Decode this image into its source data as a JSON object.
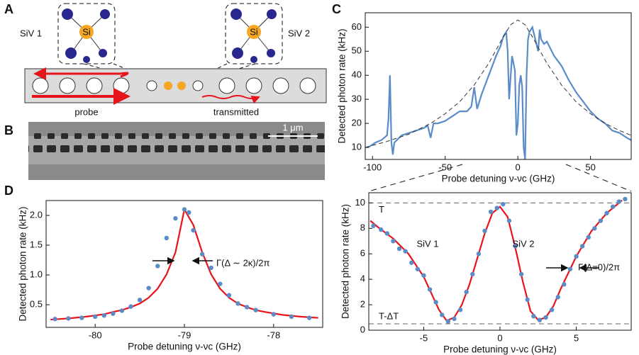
{
  "panel_labels": [
    "A",
    "B",
    "C",
    "D"
  ],
  "diagram": {
    "siv1": "SiV 1",
    "siv2": "SiV 2",
    "atom": "Si",
    "probe": "probe",
    "transmitted": "transmitted",
    "scale_bar": "1 μm"
  },
  "chart_data": [
    {
      "type": "line",
      "xlabel": "Probe detuning ν-νc (GHz)",
      "ylabel": "Detected photon rate (kHz)",
      "xlim": [
        -105,
        78
      ],
      "ylim": [
        5,
        66
      ],
      "xticks": [
        -100,
        -50,
        0,
        50
      ],
      "yticks": [
        10,
        20,
        30,
        40,
        50,
        60
      ],
      "series": [
        {
          "color": "#5b8cc8",
          "kind": "line",
          "dash": false,
          "x": [
            -103,
            -98,
            -94,
            -90,
            -89,
            -88,
            -87,
            -86,
            -85,
            -80,
            -75,
            -70,
            -65,
            -62,
            -60,
            -58,
            -55,
            -50,
            -45,
            -40,
            -35,
            -32,
            -30,
            -28,
            -25,
            -20,
            -15,
            -12,
            -10,
            -8,
            -7,
            -6,
            -4,
            -2,
            -1,
            0,
            1,
            2,
            3,
            4,
            5,
            6,
            7,
            8,
            10,
            12,
            14,
            15,
            16,
            18,
            20,
            25,
            30,
            35,
            40,
            45,
            50,
            55,
            60,
            65,
            70,
            75,
            78
          ],
          "values": [
            10,
            12,
            13,
            15,
            22,
            40,
            12,
            7,
            12,
            15,
            16,
            17,
            18,
            19,
            14,
            20,
            20,
            21,
            23,
            25,
            25,
            27,
            35,
            26,
            32,
            40,
            48,
            52,
            56,
            58,
            50,
            30,
            48,
            42,
            15,
            20,
            36,
            40,
            35,
            10,
            5,
            40,
            55,
            58,
            60,
            55,
            50,
            59,
            55,
            53,
            54,
            48,
            44,
            38,
            33,
            29,
            25,
            22,
            20,
            17,
            16,
            14,
            13
          ]
        },
        {
          "color": "#333333",
          "kind": "line",
          "dash": true,
          "x": [
            -105,
            -90,
            -75,
            -60,
            -50,
            -40,
            -30,
            -20,
            -10,
            -5,
            0,
            5,
            10,
            20,
            30,
            40,
            50,
            60,
            70,
            78
          ],
          "values": [
            10,
            12.5,
            15.5,
            20,
            24,
            29,
            36,
            45,
            56,
            61,
            63,
            61,
            56,
            45,
            36,
            29,
            24,
            20,
            17,
            15
          ]
        }
      ]
    },
    {
      "type": "scatter",
      "xlabel": "Probe detuning ν-νc (GHz)",
      "ylabel": "Detected photon rate (kHz)",
      "xlim": [
        -80.55,
        -77.45
      ],
      "ylim": [
        0.12,
        2.25
      ],
      "xticks": [
        -80,
        -79,
        -78
      ],
      "yticks": [
        0.5,
        {
          "value": 1,
          "label": "1.0"
        },
        1.5,
        {
          "value": 2,
          "label": "2.0"
        }
      ],
      "annotations": [
        "Γ(Δ ∼ 2κ)/2π"
      ],
      "series": [
        {
          "color": "#e8141b",
          "kind": "line",
          "dash": false,
          "x": [
            -80.5,
            -80.3,
            -80.1,
            -79.9,
            -79.8,
            -79.7,
            -79.6,
            -79.5,
            -79.4,
            -79.3,
            -79.2,
            -79.1,
            -79,
            -78.9,
            -78.8,
            -78.7,
            -78.6,
            -78.5,
            -78.4,
            -78.3,
            -78.2,
            -78.1,
            -77.9,
            -77.7,
            -77.5
          ],
          "values": [
            0.25,
            0.27,
            0.3,
            0.34,
            0.38,
            0.41,
            0.46,
            0.52,
            0.62,
            0.77,
            1.01,
            1.38,
            2.1,
            1.84,
            1.38,
            1.01,
            0.77,
            0.62,
            0.52,
            0.46,
            0.41,
            0.38,
            0.33,
            0.3,
            0.28
          ]
        },
        {
          "color": "#5b8cc8",
          "kind": "points",
          "x": [
            -80.45,
            -80.3,
            -80.15,
            -80,
            -79.9,
            -79.8,
            -79.7,
            -79.6,
            -79.5,
            -79.4,
            -79.3,
            -79.2,
            -79.1,
            -79,
            -78.95,
            -78.9,
            -78.8,
            -78.7,
            -78.6,
            -78.5,
            -78.4,
            -78.3,
            -78.2,
            -78,
            -77.8,
            -77.6
          ],
          "values": [
            0.26,
            0.27,
            0.28,
            0.3,
            0.32,
            0.35,
            0.4,
            0.47,
            0.58,
            0.78,
            1.15,
            1.62,
            1.95,
            2.1,
            2.05,
            1.75,
            1.35,
            1.12,
            0.85,
            0.66,
            0.52,
            0.46,
            0.41,
            0.34,
            0.3,
            0.28
          ]
        }
      ]
    },
    {
      "type": "scatter",
      "xlabel": "Probe detuning ν-νc (GHz)",
      "ylabel": "Detected photon rate (kHz)",
      "xlim": [
        -8.6,
        8.6
      ],
      "ylim": [
        0,
        10.8
      ],
      "xticks": [
        -5,
        0,
        5
      ],
      "yticks": [
        0,
        2,
        4,
        6,
        8,
        10
      ],
      "reference_lines": [
        {
          "value": 10,
          "label": "T"
        },
        {
          "value": 0.5,
          "label": "T-ΔT"
        }
      ],
      "annotations": [
        "SiV 1",
        "SiV 2",
        "Γ(Δ=0)/2π"
      ],
      "series": [
        {
          "color": "#e8141b",
          "kind": "line",
          "dash": false,
          "x": [
            -8.5,
            -8,
            -7,
            -6,
            -5,
            -4.5,
            -4,
            -3.5,
            -3,
            -2.5,
            -2,
            -1.5,
            -1,
            -0.5,
            0,
            0.5,
            1,
            1.5,
            2,
            2.5,
            3,
            3.5,
            4,
            5,
            6,
            7,
            8
          ],
          "values": [
            8.6,
            8.1,
            7.2,
            6,
            4.2,
            2.9,
            1.6,
            0.75,
            1,
            2,
            3.6,
            5.6,
            7.6,
            9.2,
            9.7,
            8.9,
            6.5,
            3.8,
            1.5,
            0.8,
            1,
            1.9,
            3.3,
            5.8,
            7.8,
            9.2,
            10.2
          ]
        },
        {
          "color": "#5b8cc8",
          "kind": "points",
          "x": [
            -8.3,
            -7.8,
            -7.4,
            -7,
            -6.6,
            -6.2,
            -5.8,
            -5.4,
            -5,
            -4.6,
            -4.2,
            -3.8,
            -3.4,
            -3,
            -2.6,
            -2.2,
            -1.8,
            -1.4,
            -1,
            -0.6,
            -0.2,
            0.2,
            0.6,
            1,
            1.4,
            1.8,
            2.2,
            2.6,
            3,
            3.4,
            3.8,
            4.2,
            4.6,
            5,
            5.4,
            5.8,
            6.2,
            6.6,
            7,
            7.4,
            7.8,
            8.2
          ],
          "values": [
            8.2,
            7.9,
            7.6,
            7,
            6.4,
            6.2,
            5.3,
            4.8,
            4.3,
            3.2,
            2.2,
            1.2,
            0.7,
            0.9,
            1.6,
            3,
            4.4,
            6,
            7.8,
            9.3,
            9.6,
            9.9,
            8.6,
            6.6,
            4.4,
            2.4,
            1.1,
            0.8,
            1,
            1.6,
            2.6,
            3.6,
            4.8,
            5.8,
            6.6,
            7.3,
            8,
            8.6,
            9.2,
            9.7,
            10.1,
            10.3
          ]
        }
      ]
    }
  ]
}
